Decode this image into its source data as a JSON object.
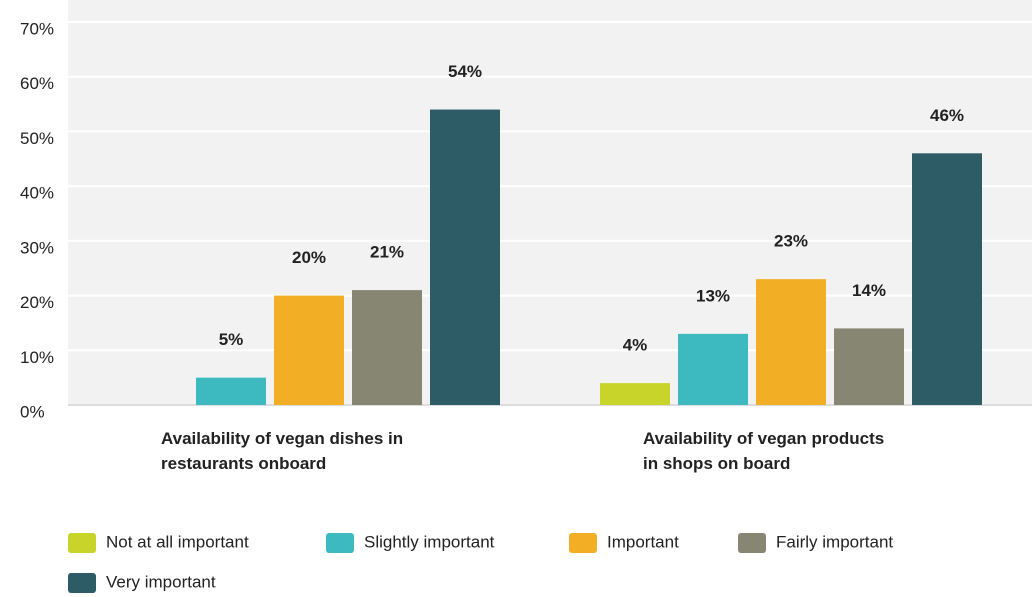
{
  "chart_data": {
    "type": "bar",
    "categories": [
      "Availability of vegan dishes in\nrestaurants onboard",
      "Availability of vegan products\nin shops on board"
    ],
    "series": [
      {
        "name": "Not at all important",
        "color": "#c9d42a",
        "values": [
          null,
          4
        ],
        "value_labels": [
          null,
          "4%"
        ]
      },
      {
        "name": "Slightly important",
        "color": "#3db9c0",
        "values": [
          5,
          13
        ],
        "value_labels": [
          "5%",
          "13%"
        ]
      },
      {
        "name": "Important",
        "color": "#f2ae24",
        "values": [
          20,
          23
        ],
        "value_labels": [
          "20%",
          "23%"
        ]
      },
      {
        "name": "Fairly important",
        "color": "#878672",
        "values": [
          21,
          14
        ],
        "value_labels": [
          "21%",
          "14%"
        ]
      },
      {
        "name": "Very important",
        "color": "#2d5c66",
        "values": [
          54,
          46
        ],
        "value_labels": [
          "54%",
          "46%"
        ]
      }
    ],
    "ylim": [
      0,
      70
    ],
    "yticks": [
      {
        "value": 0,
        "label": "0%"
      },
      {
        "value": 10,
        "label": "10%"
      },
      {
        "value": 20,
        "label": "20%"
      },
      {
        "value": 30,
        "label": "30%"
      },
      {
        "value": 40,
        "label": "40%"
      },
      {
        "value": 50,
        "label": "50%"
      },
      {
        "value": 60,
        "label": "60%"
      },
      {
        "value": 70,
        "label": "70%"
      }
    ],
    "grid": true,
    "legend": "bottom"
  }
}
